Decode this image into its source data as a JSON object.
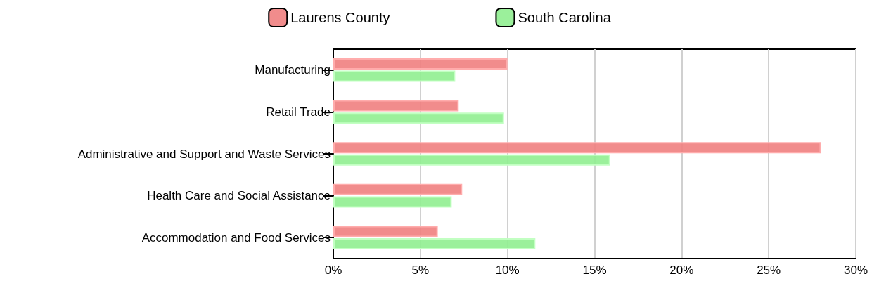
{
  "chart_data": {
    "type": "bar",
    "orientation": "horizontal",
    "categories": [
      "Manufacturing",
      "Retail Trade",
      "Administrative and Support and Waste Services",
      "Health Care and Social Assistance",
      "Accommodation and Food Services"
    ],
    "series": [
      {
        "name": "Laurens County",
        "color": "#f08080",
        "values": [
          10.0,
          7.2,
          28.0,
          7.4,
          6.0
        ]
      },
      {
        "name": "South Carolina",
        "color": "#90ee90",
        "values": [
          7.0,
          9.8,
          15.9,
          6.8,
          11.6
        ]
      }
    ],
    "xlim": [
      0,
      30
    ],
    "xticks": [
      {
        "value": 0,
        "label": "0%"
      },
      {
        "value": 5,
        "label": "5%"
      },
      {
        "value": 10,
        "label": "10%"
      },
      {
        "value": 15,
        "label": "15%"
      },
      {
        "value": 20,
        "label": "20%"
      },
      {
        "value": 25,
        "label": "25%"
      },
      {
        "value": 30,
        "label": "30%"
      }
    ],
    "grid": "x",
    "legend": "top"
  }
}
